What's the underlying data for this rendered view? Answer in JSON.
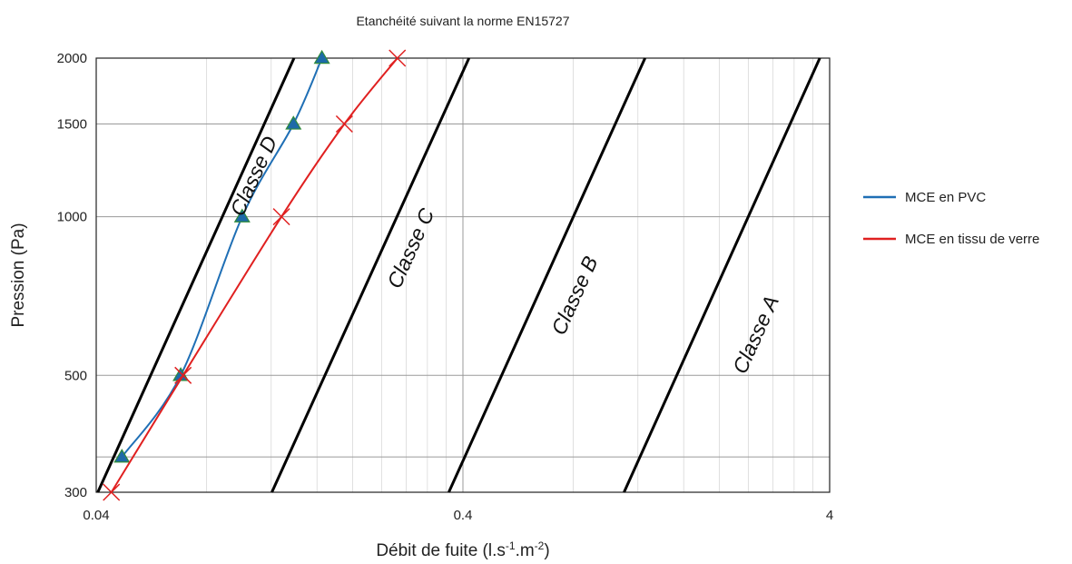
{
  "chart_data": {
    "type": "line",
    "title": "Etanchéité suivant la norme EN15727",
    "xlabel": "Débit de fuite (l.s",
    "xlabel_sup1": "-1",
    "xlabel_mid": ".m",
    "xlabel_sup2": "-2",
    "xlabel_end": ")",
    "ylabel": "Pression (Pa)",
    "x_scale": "log",
    "y_scale": "log",
    "xlim": [
      0.04,
      4
    ],
    "ylim": [
      300,
      2000
    ],
    "x_ticks": [
      {
        "value": 0.04,
        "label": "0.04"
      },
      {
        "value": 0.4,
        "label": "0.4"
      },
      {
        "value": 4,
        "label": "4"
      }
    ],
    "y_ticks": [
      {
        "value": 300,
        "label": "300"
      },
      {
        "value": 500,
        "label": "500"
      },
      {
        "value": 1000,
        "label": "1000"
      },
      {
        "value": 1500,
        "label": "1500"
      },
      {
        "value": 2000,
        "label": "2000"
      }
    ],
    "grid": true,
    "legend_position": "right",
    "series": [
      {
        "name": "MCE en PVC",
        "color": "#1f6fb5",
        "marker": "triangle",
        "marker_color": "#1d6aa8",
        "marker_edge": "#2e8b3a",
        "x": [
          0.047,
          0.068,
          0.1,
          0.138,
          0.165
        ],
        "y": [
          350,
          500,
          1000,
          1500,
          2000
        ]
      },
      {
        "name": "MCE en tissu de verre",
        "color": "#e02020",
        "marker": "x",
        "marker_color": "#e02020",
        "x": [
          0.044,
          0.069,
          0.128,
          0.19,
          0.265
        ],
        "y": [
          300,
          500,
          1000,
          1500,
          2000
        ]
      }
    ],
    "class_lines": [
      {
        "label": "Classe D",
        "x_at_300": 0.0404,
        "x_at_2000": 0.1385,
        "label_x": 0.112,
        "label_y": 1180
      },
      {
        "label": "Classe C",
        "x_at_300": 0.1205,
        "x_at_2000": 0.4155,
        "label_x": 0.3,
        "label_y": 860
      },
      {
        "label": "Classe B",
        "x_at_300": 0.366,
        "x_at_2000": 1.255,
        "label_x": 0.84,
        "label_y": 700
      },
      {
        "label": "Classe A",
        "x_at_300": 1.1,
        "x_at_2000": 3.76,
        "label_x": 2.62,
        "label_y": 590
      }
    ]
  }
}
